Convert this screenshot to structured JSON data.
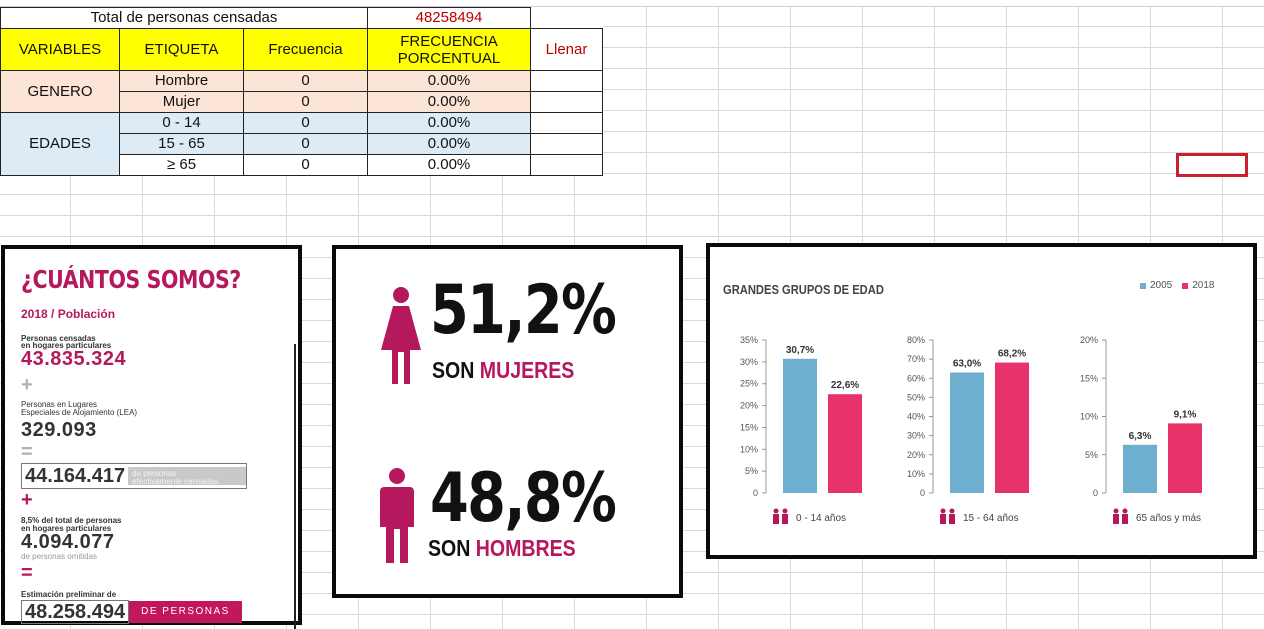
{
  "sheet": {
    "total_label": "Total de personas censadas",
    "total_value": "48258494",
    "headers": [
      "VARIABLES",
      "ETIQUETA",
      "Frecuencia",
      "FRECUENCIA PORCENTUAL",
      "Llenar"
    ],
    "groups": [
      {
        "variable": "GENERO",
        "rows": [
          {
            "etiqueta": "Hombre",
            "frecuencia": "0",
            "porcentual": "0.00%"
          },
          {
            "etiqueta": "Mujer",
            "frecuencia": "0",
            "porcentual": "0.00%"
          }
        ]
      },
      {
        "variable": "EDADES",
        "rows": [
          {
            "etiqueta": "0 - 14",
            "frecuencia": "0",
            "porcentual": "0.00%"
          },
          {
            "etiqueta": "15 - 65",
            "frecuencia": "0",
            "porcentual": "0.00%"
          },
          {
            "etiqueta": "≥ 65",
            "frecuencia": "0",
            "porcentual": "0.00%"
          }
        ]
      }
    ]
  },
  "census": {
    "title": "¿CUÁNTOS SOMOS?",
    "subtitle": "2018 / Población",
    "hogares_label_1": "Personas censadas",
    "hogares_label_2": "en hogares particulares",
    "hogares_value": "43.835.324",
    "plus": "+",
    "lea_label_1": "Personas en Lugares",
    "lea_label_2": "Especiales de Alojamiento (LEA)",
    "lea_value": "329.093",
    "equals": "=",
    "efectivas_value": "44.164.417",
    "efectivas_label_1": "de personas",
    "efectivas_label_2": "efectivamente censadas",
    "omitidas_label_1": "8,5% del total de personas",
    "omitidas_label_2": "en hogares particulares",
    "omitidas_value": "4.094.077",
    "omitidas_caption": "de personas omitidas",
    "estimacion_label": "Estimación preliminar de",
    "estimacion_value": "48.258.494",
    "estimacion_tag": "DE PERSONAS"
  },
  "gender": {
    "female_pct": "51,2%",
    "female_caption_a": "SON",
    "female_caption_b": "MUJERES",
    "male_pct": "48,8%",
    "male_caption_a": "SON",
    "male_caption_b": "HOMBRES",
    "female_icon": "woman-icon",
    "male_icon": "man-icon"
  },
  "colors": {
    "accent": "#b5185d",
    "bar2005": "#6eaecf",
    "bar2018": "#e8336a"
  },
  "chart_data": {
    "type": "bar",
    "title": "GRANDES GRUPOS DE EDAD",
    "legend": "top-right",
    "series_names": [
      "2005",
      "2018"
    ],
    "groups": [
      {
        "label": "0 - 14 años",
        "ticks": [
          "35%",
          "30%",
          "25%",
          "20%",
          "15%",
          "10%",
          "5%",
          "0"
        ],
        "ylim": [
          0,
          35
        ],
        "values": [
          30.7,
          22.6
        ],
        "labels": [
          "30,7%",
          "22,6%"
        ]
      },
      {
        "label": "15 - 64 años",
        "ticks": [
          "80%",
          "70%",
          "60%",
          "50%",
          "40%",
          "30%",
          "20%",
          "10%",
          "0"
        ],
        "ylim": [
          0,
          80
        ],
        "values": [
          63.0,
          68.2
        ],
        "labels": [
          "63,0%",
          "68,2%"
        ]
      },
      {
        "label": "65 años y más",
        "ticks": [
          "20%",
          "15%",
          "10%",
          "5%",
          "0"
        ],
        "ylim": [
          0,
          20
        ],
        "values": [
          6.3,
          9.1
        ],
        "labels": [
          "6,3%",
          "9,1%"
        ]
      }
    ]
  }
}
